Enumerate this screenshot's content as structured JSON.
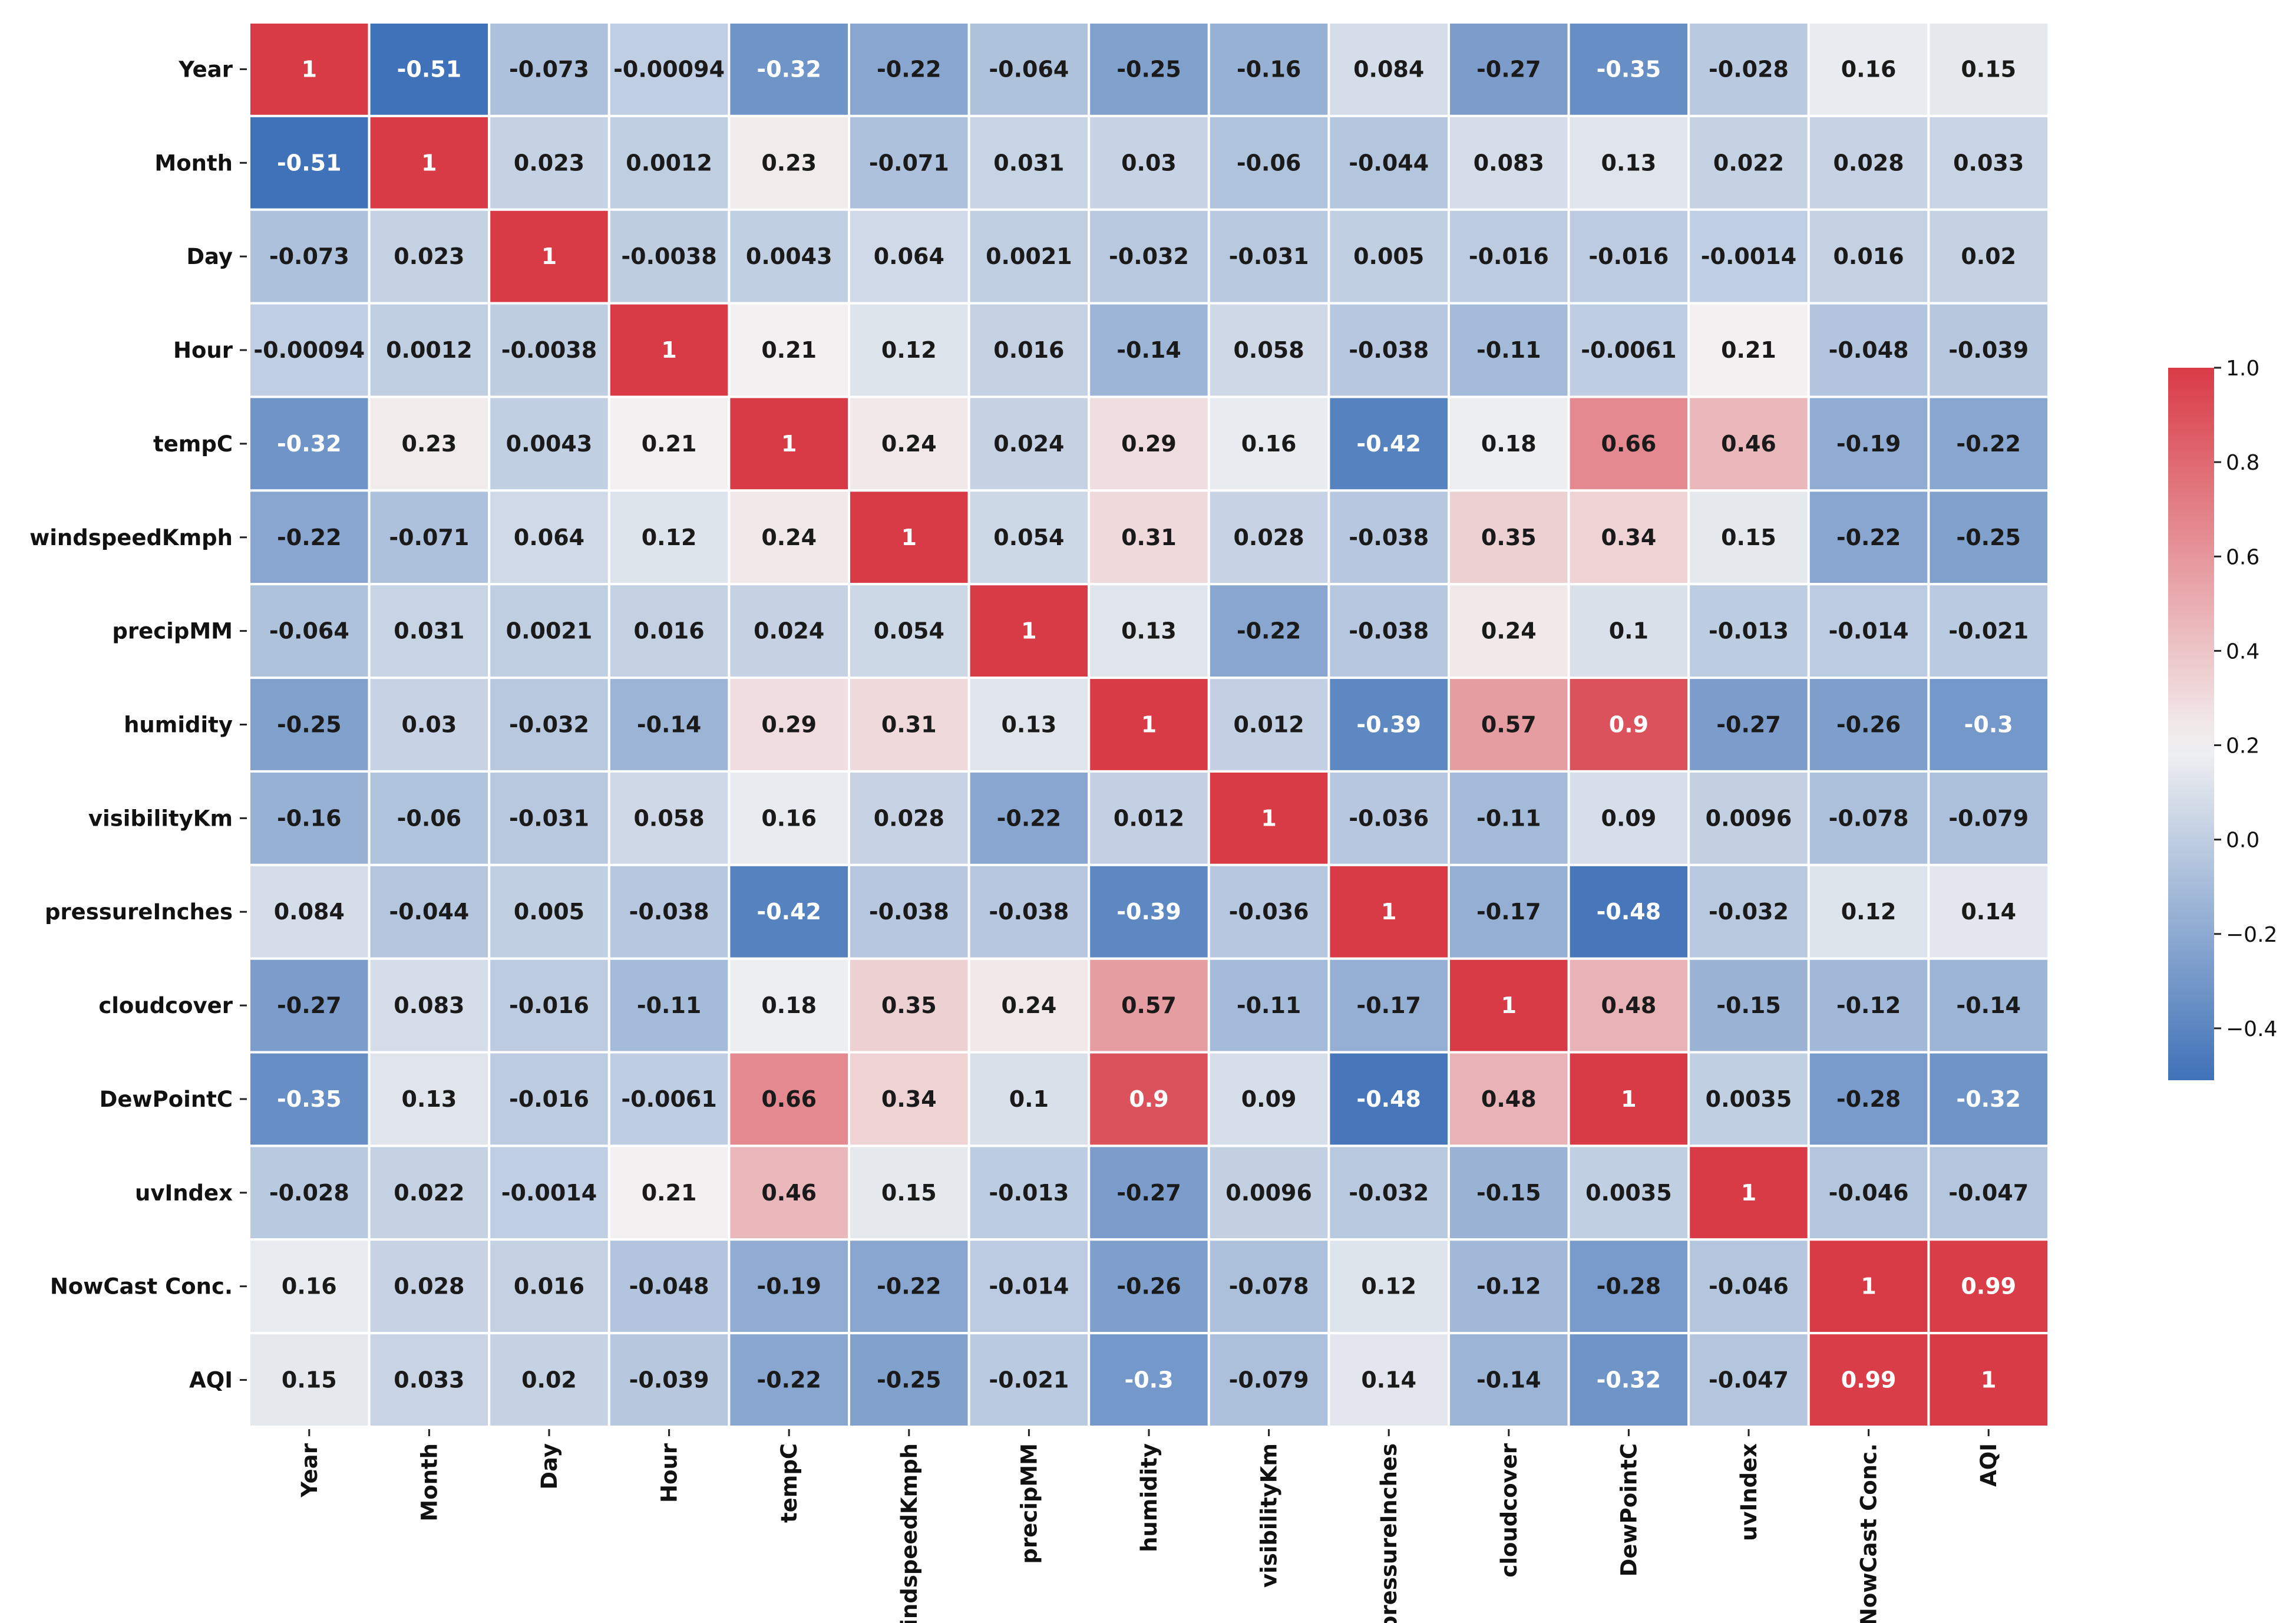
{
  "chart_data": {
    "type": "heatmap",
    "title": "",
    "xlabel": "",
    "ylabel": "",
    "labels": [
      "Year",
      "Month",
      "Day",
      "Hour",
      "tempC",
      "windspeedKmph",
      "precipMM",
      "humidity",
      "visibilityKm",
      "pressureInches",
      "cloudcover",
      "DewPointC",
      "uvIndex",
      "NowCast Conc.",
      "AQI"
    ],
    "values": [
      [
        1,
        -0.51,
        -0.073,
        -0.00094,
        -0.32,
        -0.22,
        -0.064,
        -0.25,
        -0.16,
        0.084,
        -0.27,
        -0.35,
        -0.028,
        0.16,
        0.15
      ],
      [
        -0.51,
        1,
        0.023,
        0.0012,
        0.23,
        -0.071,
        0.031,
        0.03,
        -0.06,
        -0.044,
        0.083,
        0.13,
        0.022,
        0.028,
        0.033
      ],
      [
        -0.073,
        0.023,
        1,
        -0.0038,
        0.0043,
        0.064,
        0.0021,
        -0.032,
        -0.031,
        0.005,
        -0.016,
        -0.016,
        -0.0014,
        0.016,
        0.02
      ],
      [
        -0.00094,
        0.0012,
        -0.0038,
        1,
        0.21,
        0.12,
        0.016,
        -0.14,
        0.058,
        -0.038,
        -0.11,
        -0.0061,
        0.21,
        -0.048,
        -0.039
      ],
      [
        -0.32,
        0.23,
        0.0043,
        0.21,
        1,
        0.24,
        0.024,
        0.29,
        0.16,
        -0.42,
        0.18,
        0.66,
        0.46,
        -0.19,
        -0.22
      ],
      [
        -0.22,
        -0.071,
        0.064,
        0.12,
        0.24,
        1,
        0.054,
        0.31,
        0.028,
        -0.038,
        0.35,
        0.34,
        0.15,
        -0.22,
        -0.25
      ],
      [
        -0.064,
        0.031,
        0.0021,
        0.016,
        0.024,
        0.054,
        1,
        0.13,
        -0.22,
        -0.038,
        0.24,
        0.1,
        -0.013,
        -0.014,
        -0.021
      ],
      [
        -0.25,
        0.03,
        -0.032,
        -0.14,
        0.29,
        0.31,
        0.13,
        1,
        0.012,
        -0.39,
        0.57,
        0.9,
        -0.27,
        -0.26,
        -0.3
      ],
      [
        -0.16,
        -0.06,
        -0.031,
        0.058,
        0.16,
        0.028,
        -0.22,
        0.012,
        1,
        -0.036,
        -0.11,
        0.09,
        0.0096,
        -0.078,
        -0.079
      ],
      [
        0.084,
        -0.044,
        0.005,
        -0.038,
        -0.42,
        -0.038,
        -0.038,
        -0.39,
        -0.036,
        1,
        -0.17,
        -0.48,
        -0.032,
        0.12,
        0.14
      ],
      [
        -0.27,
        0.083,
        -0.016,
        -0.11,
        0.18,
        0.35,
        0.24,
        0.57,
        -0.11,
        -0.17,
        1,
        0.48,
        -0.15,
        -0.12,
        -0.14
      ],
      [
        -0.35,
        0.13,
        -0.016,
        -0.0061,
        0.66,
        0.34,
        0.1,
        0.9,
        0.09,
        -0.48,
        0.48,
        1,
        0.0035,
        -0.28,
        -0.32
      ],
      [
        -0.028,
        0.022,
        -0.0014,
        0.21,
        0.46,
        0.15,
        -0.013,
        -0.27,
        0.0096,
        -0.032,
        -0.15,
        0.0035,
        1,
        -0.046,
        -0.047
      ],
      [
        0.16,
        0.028,
        0.016,
        -0.048,
        -0.19,
        -0.22,
        -0.014,
        -0.26,
        -0.078,
        0.12,
        -0.12,
        -0.28,
        -0.046,
        1,
        0.99
      ],
      [
        0.15,
        0.033,
        0.02,
        -0.039,
        -0.22,
        -0.25,
        -0.021,
        -0.3,
        -0.079,
        0.14,
        -0.14,
        -0.32,
        -0.047,
        0.99,
        1
      ]
    ],
    "colorbar": {
      "vmin": -0.51,
      "vmax": 1.0,
      "center": 0.2,
      "ticks": [
        1.0,
        0.8,
        0.6,
        0.4,
        0.2,
        0.0,
        -0.2,
        -0.4
      ],
      "tick_labels": [
        "1.0",
        "0.8",
        "0.6",
        "0.4",
        "0.2",
        "0.0",
        "−0.2",
        "−0.4"
      ]
    },
    "colors": {
      "low": "#3f72b8",
      "mid": "#f2f2f2",
      "high": "#d93b46",
      "grid_line": "#ffffff"
    }
  }
}
